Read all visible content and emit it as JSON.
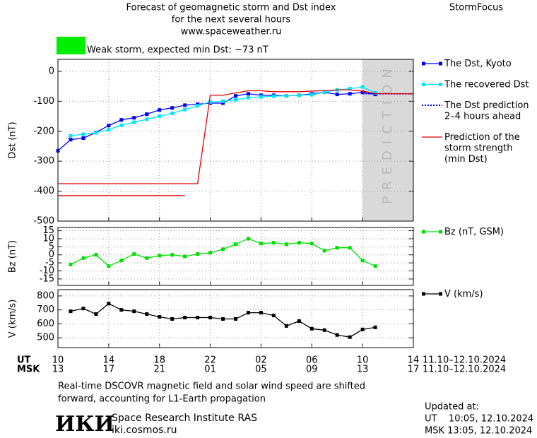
{
  "header": {
    "title_lines": [
      "Forecast of geomagnetic storm and Dst index",
      "for the next several hours",
      "www.spaceweather.ru"
    ],
    "brand": "StormFocus",
    "storm_status": "Weak storm, expected min Dst: −73 nT",
    "storm_color": "#00ee00"
  },
  "chart_data": [
    {
      "type": "line",
      "ylabel": "Dst (nT)",
      "x": [
        0,
        1,
        2,
        3,
        4,
        5,
        6,
        7,
        8,
        9,
        10,
        11,
        12,
        13,
        14,
        15,
        16,
        17,
        18,
        19,
        20,
        21,
        22,
        23,
        24,
        25,
        26,
        27,
        28
      ],
      "xlim": [
        0,
        28
      ],
      "xticks": [
        0,
        4,
        8,
        12,
        16,
        20,
        24,
        28
      ],
      "ylim": [
        -500,
        40
      ],
      "yticks": [
        0,
        -100,
        -200,
        -300,
        -400,
        -500
      ],
      "grid": true,
      "prediction_region": {
        "x": [
          24,
          28
        ],
        "label": "PREDICTION",
        "color": "#d9d9d9"
      },
      "series": [
        {
          "name": "The Dst, Kyoto",
          "color": "#0000ff",
          "marker": "square",
          "values": [
            -265,
            -228,
            -223,
            -204,
            -181,
            -162,
            -155,
            -143,
            -129,
            -122,
            -113,
            -110,
            -106,
            -106,
            -82,
            -75,
            -80,
            -80,
            -82,
            -80,
            -75,
            -70,
            -77,
            -75,
            -70,
            -77,
            null,
            null,
            null
          ]
        },
        {
          "name": "The recovered Dst",
          "color": "#00e5ff",
          "marker": "square",
          "values": [
            null,
            -215,
            -210,
            -205,
            -195,
            -180,
            -170,
            -160,
            -150,
            -140,
            -128,
            -115,
            -102,
            -100,
            -95,
            -88,
            -85,
            -83,
            -82,
            -80,
            -78,
            -70,
            -62,
            -58,
            -52,
            -72,
            null,
            null,
            null
          ]
        },
        {
          "name": "The Dst prediction\n2–4 hours ahead",
          "color": "#0000ff",
          "dash": "dotted",
          "values": [
            null,
            null,
            null,
            null,
            null,
            null,
            null,
            null,
            null,
            null,
            null,
            null,
            null,
            null,
            null,
            null,
            null,
            null,
            null,
            null,
            null,
            null,
            null,
            null,
            -75,
            -75,
            -75,
            -75,
            -75
          ]
        },
        {
          "name": "Prediction of the\nstorm strength\n(min Dst)",
          "color": "#e00000",
          "values": [
            -375,
            -375,
            -375,
            -375,
            -375,
            -375,
            -375,
            -375,
            -375,
            -375,
            -375,
            -375,
            -80,
            -80,
            -72,
            -65,
            -65,
            -68,
            -68,
            -68,
            -66,
            -64,
            -62,
            -62,
            -66,
            -74,
            -75,
            -75,
            -75
          ]
        },
        {
          "color": "#e00000",
          "values": [
            -415,
            -415,
            -415,
            -415,
            -415,
            -415,
            -415,
            -415,
            -415,
            -415,
            -415,
            null,
            null,
            null,
            null,
            null,
            null,
            null,
            null,
            null,
            null,
            null,
            null,
            null,
            null,
            null,
            null,
            null,
            null
          ]
        }
      ]
    },
    {
      "type": "line",
      "ylabel": "Bz (nT)",
      "x": [
        1,
        2,
        3,
        4,
        5,
        6,
        7,
        8,
        9,
        10,
        11,
        12,
        13,
        14,
        15,
        16,
        17,
        18,
        19,
        20,
        21,
        22,
        23,
        24,
        25
      ],
      "xlim": [
        0,
        28
      ],
      "xticks": [
        0,
        4,
        8,
        12,
        16,
        20,
        24,
        28
      ],
      "ylim": [
        -19,
        17
      ],
      "yticks": [
        15,
        10,
        5,
        0,
        -5,
        -10,
        -15
      ],
      "grid": true,
      "series": [
        {
          "name": "Bz (nT, GSM)",
          "color": "#00e000",
          "marker": "square",
          "values": [
            -6,
            -2,
            0,
            -7,
            -3.5,
            0.5,
            -2,
            -0.5,
            0,
            -1,
            0.5,
            1.3,
            3.5,
            6.6,
            10,
            7,
            7.5,
            6.6,
            7.5,
            7,
            2.6,
            4.4,
            4.4,
            -3.5,
            -7
          ]
        }
      ]
    },
    {
      "type": "line",
      "ylabel": "V (km/s)",
      "x": [
        1,
        2,
        3,
        4,
        5,
        6,
        7,
        8,
        9,
        10,
        11,
        12,
        13,
        14,
        15,
        16,
        17,
        18,
        19,
        20,
        21,
        22,
        23,
        24,
        25
      ],
      "xlim": [
        0,
        28
      ],
      "xlabel": "UT",
      "xticks": [
        {
          "value": 0,
          "label": "10"
        },
        {
          "value": 4,
          "label": "14"
        },
        {
          "value": 8,
          "label": "18"
        },
        {
          "value": 12,
          "label": "22"
        },
        {
          "value": 16,
          "label": "02"
        },
        {
          "value": 20,
          "label": "06"
        },
        {
          "value": 24,
          "label": "10"
        },
        {
          "value": 28,
          "label": "14"
        }
      ],
      "x2label": "MSK",
      "x2ticks": [
        {
          "value": 0,
          "label": "13"
        },
        {
          "value": 4,
          "label": "17"
        },
        {
          "value": 8,
          "label": "21"
        },
        {
          "value": 12,
          "label": "01"
        },
        {
          "value": 16,
          "label": "05"
        },
        {
          "value": 20,
          "label": "09"
        },
        {
          "value": 24,
          "label": "13"
        },
        {
          "value": 28,
          "label": "17"
        }
      ],
      "date_range": "11.10–12.10.2024",
      "ylim": [
        430,
        845
      ],
      "yticks": [
        800,
        700,
        600,
        500
      ],
      "grid": true,
      "series": [
        {
          "name": "V (km/s)",
          "color": "#000000",
          "marker": "square",
          "values": [
            690,
            710,
            670,
            745,
            700,
            690,
            670,
            650,
            635,
            645,
            645,
            645,
            635,
            635,
            680,
            680,
            660,
            585,
            620,
            565,
            555,
            520,
            505,
            560,
            575
          ]
        }
      ]
    }
  ],
  "footer": {
    "note_lines": [
      "Real-time DSCOVR magnetic field and solar wind speed are shifted",
      "forward, accounting for L1-Earth propagation"
    ],
    "logo": "ИКИ",
    "institute": "Space Research Institute RAS",
    "site": "iki.cosmos.ru",
    "updated_label": "Updated at:",
    "updated_ut": "UT    10:05, 12.10.2024",
    "updated_msk": "MSK 13:05, 12.10.2024"
  }
}
